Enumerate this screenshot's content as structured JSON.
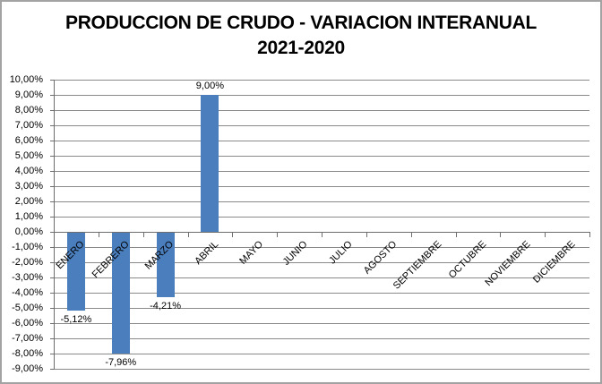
{
  "chart_data": {
    "type": "bar",
    "title": "PRODUCCION DE CRUDO - VARIACION INTERANUAL",
    "subtitle": "2021-2020",
    "categories": [
      "ENERO",
      "FEBRERO",
      "MARZO",
      "ABRIL",
      "MAYO",
      "JUNIO",
      "JULIO",
      "AGOSTO",
      "SEPTIEMBRE",
      "OCTUBRE",
      "NOVIEMBRE",
      "DICIEMBRE"
    ],
    "values": [
      -5.12,
      -7.96,
      -4.21,
      9.0,
      0,
      0,
      0,
      0,
      0,
      0,
      0,
      0
    ],
    "data_labels": [
      "-5,12%",
      "-7,96%",
      "-4,21%",
      "9,00%",
      "",
      "",
      "",
      "",
      "",
      "",
      "",
      ""
    ],
    "xlabel": "",
    "ylabel": "",
    "ylim": [
      -9,
      10
    ],
    "ytick_step": 1,
    "ytick_labels": [
      "10,00%",
      "9,00%",
      "8,00%",
      "7,00%",
      "6,00%",
      "5,00%",
      "4,00%",
      "3,00%",
      "2,00%",
      "1,00%",
      "0,00%",
      "-1,00%",
      "-2,00%",
      "-3,00%",
      "-4,00%",
      "-5,00%",
      "-6,00%",
      "-7,00%",
      "-8,00%",
      "-9,00%"
    ],
    "grid": true,
    "legend": false,
    "colors": {
      "bar": "#4A7EBD",
      "gridline": "#8a8a8a",
      "axis": "#6e6e6e",
      "text": "#000000",
      "background": "#ffffff",
      "frame_border": "#a3a3a3"
    }
  }
}
